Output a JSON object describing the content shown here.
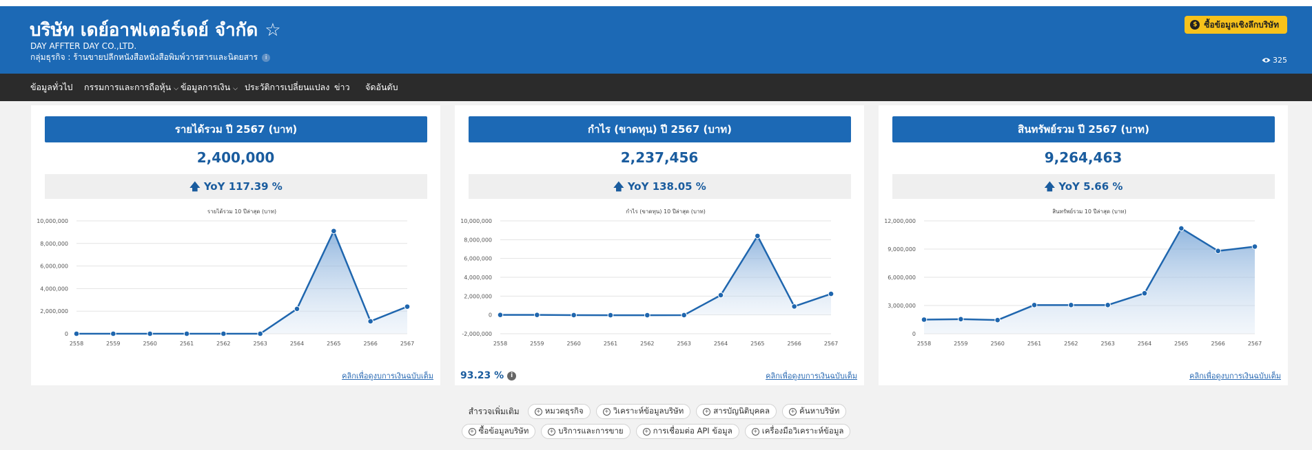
{
  "company": {
    "name_th": "บริษัท เดย์อาฟเตอร์เดย์ จำกัด",
    "star": "☆",
    "name_en": "DAY AFFTER DAY CO.,LTD.",
    "business": "กลุ่มธุรกิจ : ร้านขายปลีกหนังสือหนังสือพิมพ์วารสารและนิตยสาร",
    "buy_label": "ซื้อข้อมูลเชิงลึกบริษัท",
    "views": "325"
  },
  "nav": {
    "items": [
      "ข้อมูลทั่วไป",
      "กรรมการและการถือหุ้น",
      "ข้อมูลการเงิน",
      "ประวัติการเปลี่ยนแปลง",
      "ข่าว",
      "จัดอันดับ"
    ]
  },
  "cards": [
    {
      "title": "รายได้รวม ปี 2567 (บาท)",
      "value": "2,400,000",
      "yoy": "🡅 YoY 117.39 %",
      "link": "คลิกเพื่อดูงบการเงินฉบับเต็ม"
    },
    {
      "title": "กำไร (ขาดทุน) ปี 2567 (บาท)",
      "value": "2,237,456",
      "yoy": "🡅 YoY 138.05 %",
      "link": "คลิกเพื่อดูงบการเงินฉบับเต็ม"
    },
    {
      "title": "สินทรัพย์รวม ปี 2567 (บาท)",
      "value": "9,264,463",
      "yoy": "🡅 YoY 5.66 %",
      "link": "คลิกเพื่อดูงบการเงินฉบับเต็ม"
    }
  ],
  "profit_margin": "93.23 %",
  "explore": {
    "label": "สำรวจเพิ่มเติม",
    "row1": [
      "หมวดธุรกิจ",
      "วิเคราะห์ข้อมูลบริษัท",
      "สารบัญนิติบุคคล",
      "ค้นหาบริษัท"
    ],
    "row2": [
      "ซื้อข้อมูลบริษัท",
      "บริการและการขาย",
      "การเชื่อมต่อ API ข้อมูล",
      "เครื่องมือวิเคราะห์ข้อมูล"
    ]
  },
  "colors": {
    "header": "#1c69b5",
    "nav": "#2b2b2b",
    "accent": "#f7c21b",
    "line": "#1f66ae"
  },
  "chart_data": [
    {
      "type": "area",
      "title": "รายได้รวม 10 ปีล่าสุด (บาท)",
      "x": [
        "2558",
        "2559",
        "2560",
        "2561",
        "2562",
        "2563",
        "2564",
        "2565",
        "2566",
        "2567"
      ],
      "values": [
        0,
        0,
        0,
        0,
        0,
        0,
        2200000,
        9100000,
        1100000,
        2400000
      ],
      "yticks": [
        0,
        2000000,
        4000000,
        6000000,
        8000000,
        10000000
      ],
      "ytick_labels": [
        "0",
        "2,000,000",
        "4,000,000",
        "6,000,000",
        "8,000,000",
        "10,000,000"
      ],
      "ylim": [
        0,
        10000000
      ]
    },
    {
      "type": "area",
      "title": "กำไร (ขาดทุน) 10 ปีล่าสุด (บาท)",
      "x": [
        "2558",
        "2559",
        "2560",
        "2561",
        "2562",
        "2563",
        "2564",
        "2565",
        "2566",
        "2567"
      ],
      "values": [
        0,
        0,
        -20000,
        -30000,
        -30000,
        -20000,
        2100000,
        8400000,
        900000,
        2237456
      ],
      "yticks": [
        -2000000,
        0,
        2000000,
        4000000,
        6000000,
        8000000,
        10000000
      ],
      "ytick_labels": [
        "-2,000,000",
        "0",
        "2,000,000",
        "4,000,000",
        "6,000,000",
        "8,000,000",
        "10,000,000"
      ],
      "ylim": [
        -2000000,
        10000000
      ]
    },
    {
      "type": "area",
      "title": "สินทรัพย์รวม 10 ปีล่าสุด (บาท)",
      "x": [
        "2558",
        "2559",
        "2560",
        "2561",
        "2562",
        "2563",
        "2564",
        "2565",
        "2566",
        "2567"
      ],
      "values": [
        1500000,
        1550000,
        1450000,
        3050000,
        3050000,
        3050000,
        4300000,
        11200000,
        8800000,
        9264463
      ],
      "yticks": [
        0,
        3000000,
        6000000,
        9000000,
        12000000
      ],
      "ytick_labels": [
        "0",
        "3,000,000",
        "6,000,000",
        "9,000,000",
        "12,000,000"
      ],
      "ylim": [
        0,
        12000000
      ]
    }
  ]
}
